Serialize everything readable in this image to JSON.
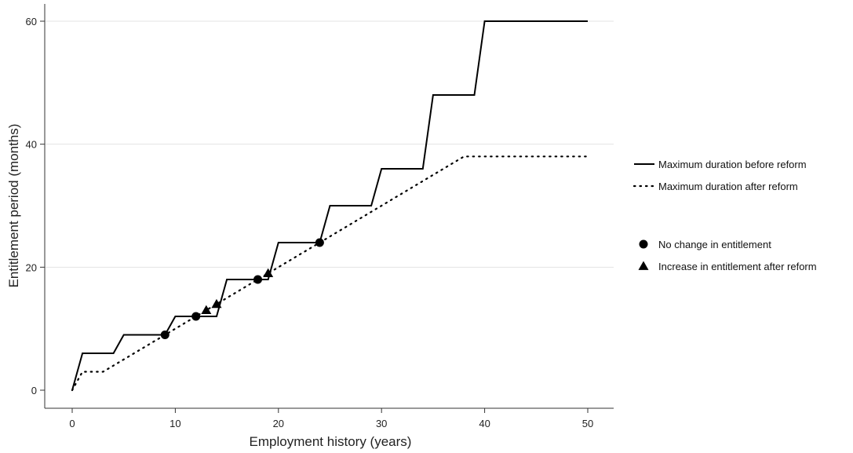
{
  "chart_data": {
    "type": "line",
    "xlabel": "Employment history (years)",
    "ylabel": "Entitlement period (months)",
    "xlim": [
      0,
      50
    ],
    "ylim": [
      0,
      60
    ],
    "x_ticks": [
      0,
      10,
      20,
      30,
      40,
      50
    ],
    "y_ticks": [
      0,
      20,
      40,
      60
    ],
    "grid": "horizontal",
    "legend_position": "right",
    "series": [
      {
        "name": "Maximum duration before reform",
        "style": "solid",
        "x": [
          0,
          1,
          4,
          5,
          9,
          10,
          14,
          15,
          19,
          20,
          24,
          25,
          29,
          30,
          34,
          35,
          39,
          40,
          50
        ],
        "y": [
          0,
          6,
          6,
          9,
          9,
          12,
          12,
          18,
          18,
          24,
          24,
          30,
          30,
          36,
          36,
          48,
          48,
          60,
          60
        ]
      },
      {
        "name": "Maximum duration after reform",
        "style": "dotted",
        "x": [
          0,
          1,
          3,
          9,
          12,
          18,
          24,
          38,
          50
        ],
        "y": [
          0,
          3,
          3,
          9,
          12,
          18,
          24,
          38,
          38
        ]
      }
    ],
    "markers": [
      {
        "name": "No change in entitlement",
        "shape": "circle",
        "points": [
          [
            9,
            9
          ],
          [
            12,
            12
          ],
          [
            18,
            18
          ],
          [
            24,
            24
          ]
        ]
      },
      {
        "name": "Increase in entitlement after reform",
        "shape": "triangle",
        "points": [
          [
            13,
            13
          ],
          [
            14,
            14
          ],
          [
            19,
            19
          ]
        ]
      }
    ],
    "colors": {
      "line": "#000000",
      "grid": "#e3e3e3",
      "axis": "#333333"
    }
  }
}
